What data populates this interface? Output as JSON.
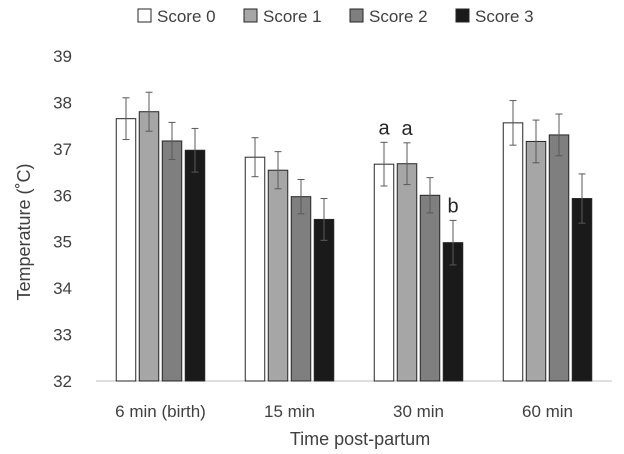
{
  "chart_data": {
    "type": "bar",
    "categories": [
      "6 min (birth)",
      "15 min",
      "30 min",
      "60 min"
    ],
    "series": [
      {
        "name": "Score 0",
        "values": [
          37.65,
          36.82,
          36.67,
          37.56
        ],
        "errors": [
          0.45,
          0.42,
          0.47,
          0.48
        ],
        "color": "#ffffff"
      },
      {
        "name": "Score 1",
        "values": [
          37.8,
          36.54,
          36.68,
          37.16
        ],
        "errors": [
          0.42,
          0.4,
          0.45,
          0.46
        ],
        "color": "#a6a6a6"
      },
      {
        "name": "Score 2",
        "values": [
          37.17,
          35.97,
          36.0,
          37.3
        ],
        "errors": [
          0.4,
          0.37,
          0.38,
          0.45
        ],
        "color": "#7f7f7f"
      },
      {
        "name": "Score 3",
        "values": [
          36.97,
          35.48,
          34.98,
          35.93
        ],
        "errors": [
          0.47,
          0.45,
          0.48,
          0.53
        ],
        "color": "#1a1a1a"
      }
    ],
    "annotations": [
      {
        "category": "30 min",
        "series": "Score 0",
        "text": "a"
      },
      {
        "category": "30 min",
        "series": "Score 1",
        "text": "a"
      },
      {
        "category": "30 min",
        "series": "Score 3",
        "text": "b"
      }
    ],
    "xlabel": "Time post-partum",
    "ylabel": "Temperature (˚C)",
    "ylim": [
      32,
      39
    ],
    "yticks": [
      "32",
      "33",
      "34",
      "35",
      "36",
      "37",
      "38",
      "39"
    ],
    "grid": false,
    "legend_position": "top"
  }
}
